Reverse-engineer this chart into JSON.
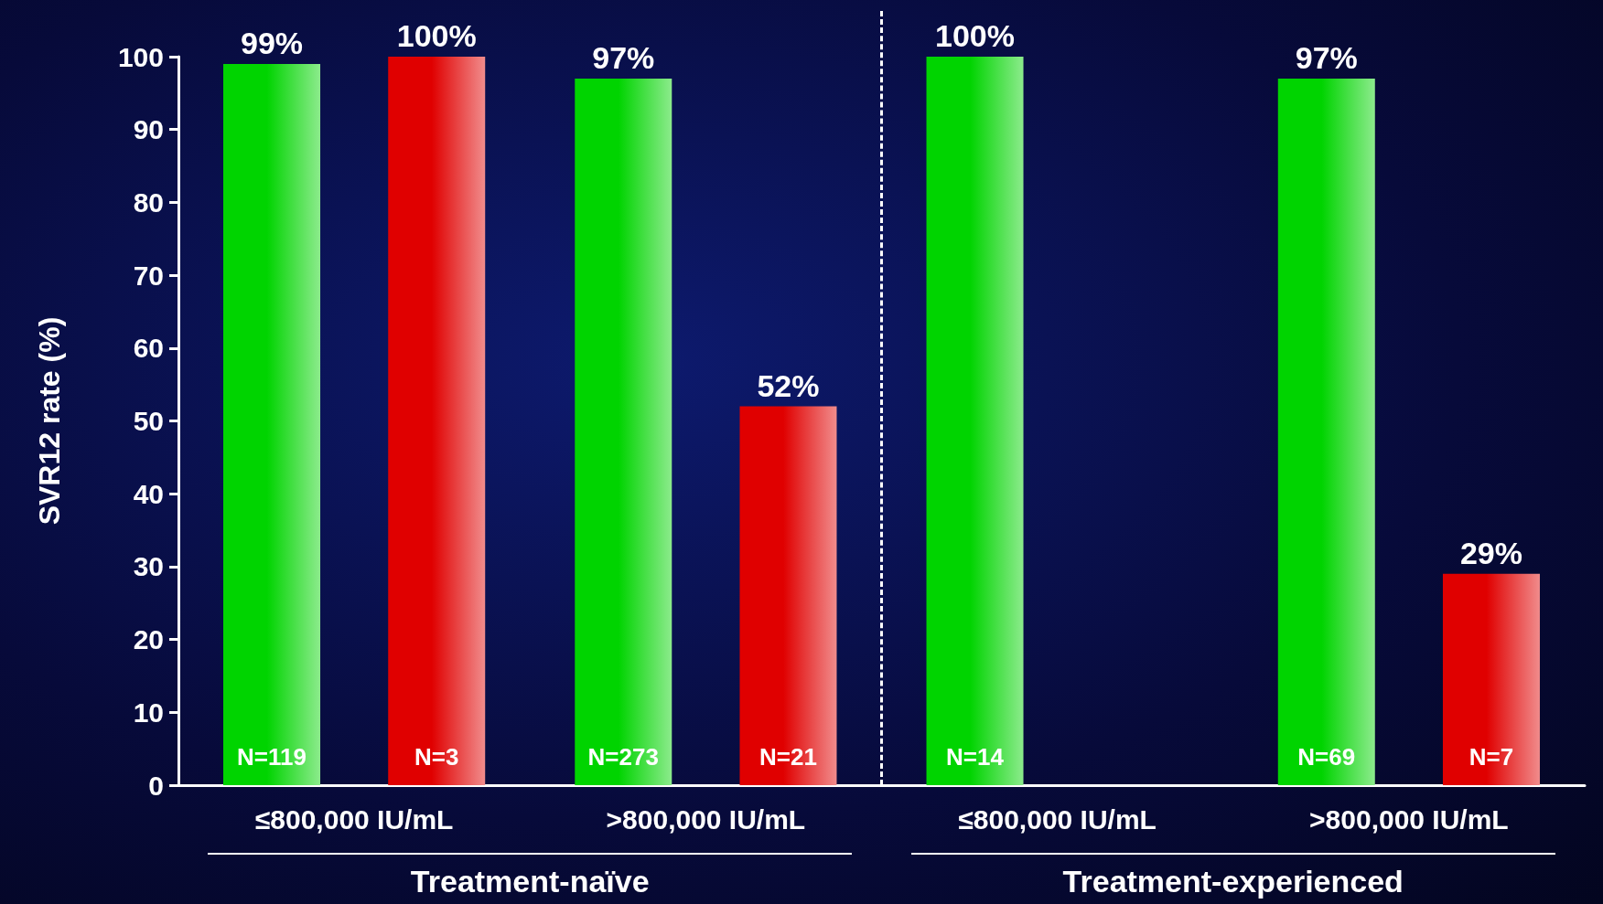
{
  "chart_data": {
    "type": "bar",
    "ylabel": "SVR12 rate (%)",
    "categories": [
      "≤800,000 IU/mL",
      ">800,000 IU/mL",
      "≤800,000 IU/mL",
      ">800,000 IU/mL"
    ],
    "series": [
      {
        "color": "#00d400",
        "values": [
          99,
          97,
          100,
          97
        ],
        "value_labels": [
          "99%",
          "97%",
          "100%",
          "97%"
        ]
      },
      {
        "color": "#e00000",
        "values": [
          100,
          52,
          null,
          29
        ],
        "value_labels": [
          "100%",
          "52%",
          null,
          "29%"
        ]
      }
    ],
    "ylim": [
      0,
      100
    ],
    "yticks": [
      0,
      10,
      20,
      30,
      40,
      50,
      60,
      70,
      80,
      90,
      100
    ],
    "grid": false,
    "annotations": [
      "N=119",
      "N=3",
      "N=273",
      "N=21",
      "N=14",
      "N=69",
      "N=7",
      "Treatment-naïve",
      "Treatment-experienced"
    ]
  }
}
